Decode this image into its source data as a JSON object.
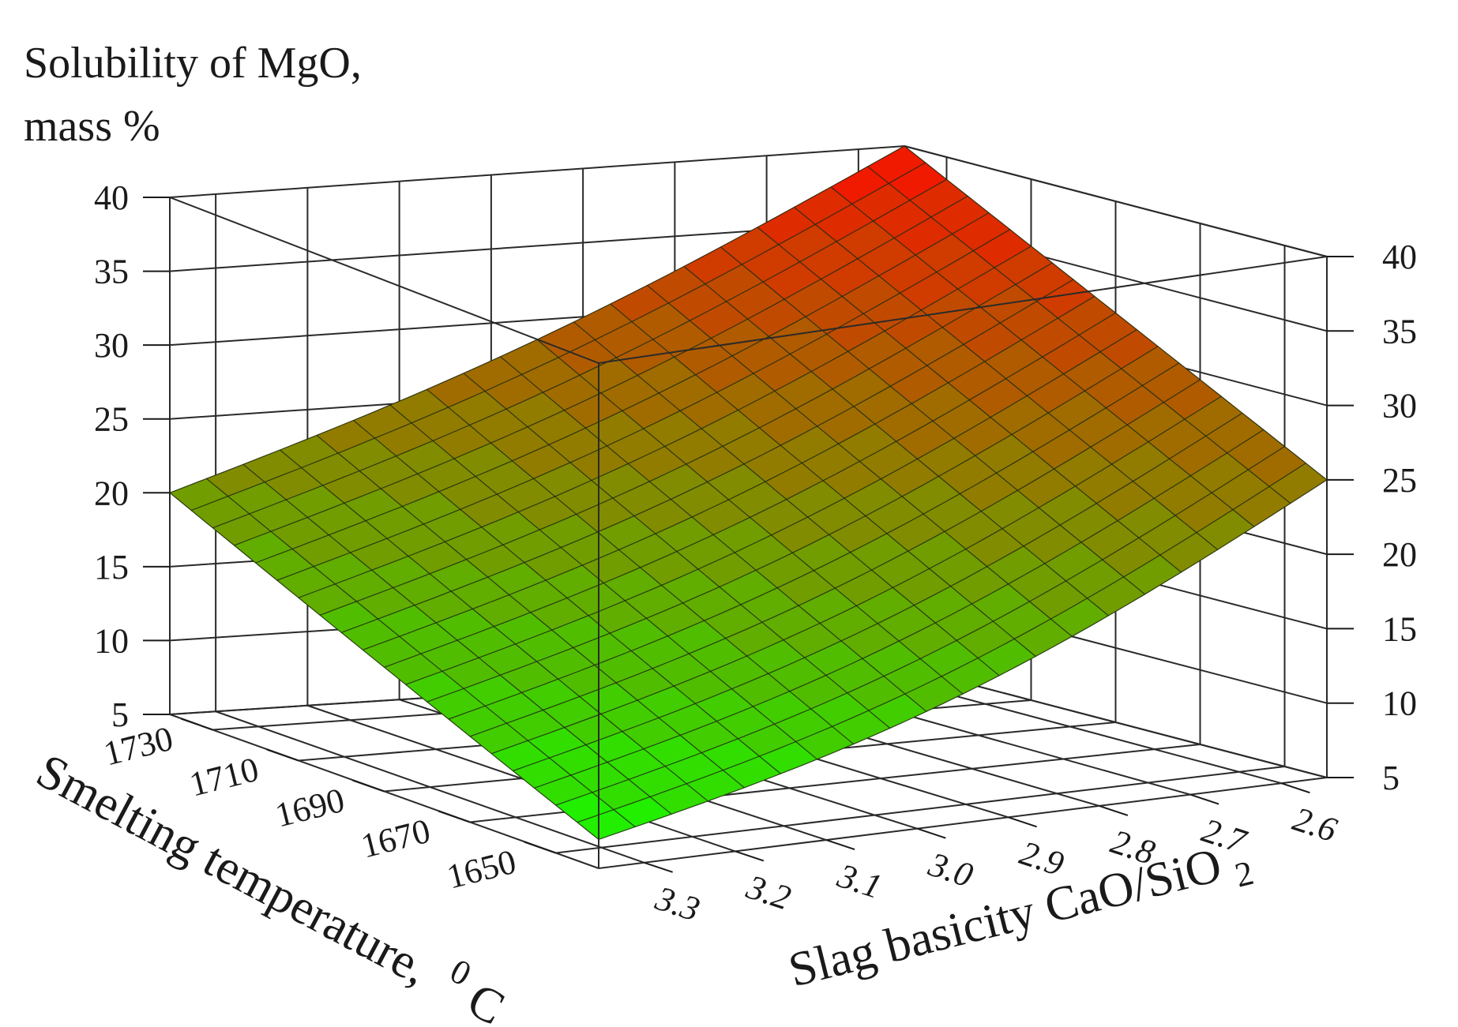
{
  "chart_data": {
    "type": "surface3d",
    "title_line1": "Solubility of MgO,",
    "title_line2": "mass %",
    "xlabel": "Smelting temperature,",
    "xlabel_superscript": "0",
    "xlabel_unit": "C",
    "ylabel_main": "Slag basicity CaO/SiO",
    "ylabel_subscript": "2",
    "z_ticks": [
      5,
      10,
      15,
      20,
      25,
      30,
      35,
      40
    ],
    "z_tick_labels": [
      "5",
      "10",
      "15",
      "20",
      "25",
      "30",
      "35",
      "40"
    ],
    "zlim": [
      5,
      40
    ],
    "x_ticks": [
      1650,
      1670,
      1690,
      1710,
      1730
    ],
    "x_tick_labels": [
      "1650",
      "1670",
      "1690",
      "1710",
      "1730"
    ],
    "xlim": [
      1640,
      1740
    ],
    "y_ticks": [
      3.3,
      3.2,
      3.1,
      3.0,
      2.9,
      2.8,
      2.7,
      2.6
    ],
    "y_tick_labels": [
      "3.3",
      "3.2",
      "3.1",
      "3.0",
      "2.9",
      "2.8",
      "2.7",
      "2.6"
    ],
    "ylim": [
      2.55,
      3.35
    ],
    "surface": {
      "description_values": "MgO solubility at surface corners",
      "corners": [
        {
          "temperature": 1640,
          "basicity": 3.35,
          "solubility": 7
        },
        {
          "temperature": 1640,
          "basicity": 2.55,
          "solubility": 25
        },
        {
          "temperature": 1740,
          "basicity": 3.35,
          "solubility": 20
        },
        {
          "temperature": 1740,
          "basicity": 2.55,
          "solubility": 40
        }
      ],
      "color_low": "#22ee00",
      "color_high": "#ff0a00"
    }
  }
}
